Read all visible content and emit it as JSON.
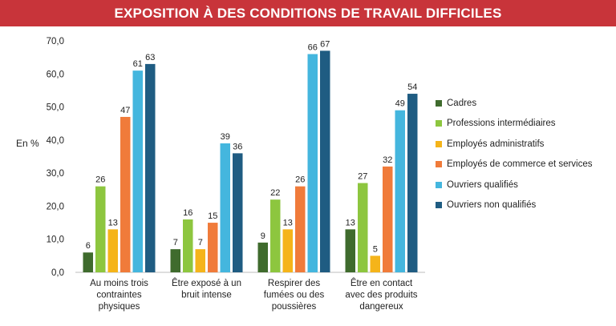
{
  "header": {
    "title": "EXPOSITION À DES CONDITIONS DE TRAVAIL DIFFICILES"
  },
  "colors": {
    "banner": "#c8343a",
    "series": [
      "#3f6b2d",
      "#8dc63f",
      "#f5b41a",
      "#f07b3a",
      "#44b6de",
      "#1f5c82"
    ]
  },
  "chart_data": {
    "type": "bar",
    "title": "",
    "ylabel": "En %",
    "xlabel": "",
    "ylim": [
      0,
      70
    ],
    "yticks": [
      "0,0",
      "10,0",
      "20,0",
      "30,0",
      "40,0",
      "50,0",
      "60,0",
      "70,0"
    ],
    "grid": false,
    "legend_position": "right",
    "categories": [
      [
        "Au moins trois",
        "contraintes",
        "physiques"
      ],
      [
        "Être exposé à un",
        "bruit intense"
      ],
      [
        "Respirer des",
        "fumées ou des",
        "poussières"
      ],
      [
        "Être en contact",
        "avec des produits",
        "dangereux"
      ]
    ],
    "series": [
      {
        "name": "Cadres",
        "values": [
          6,
          7,
          9,
          13
        ]
      },
      {
        "name": "Professions intermédiaires",
        "values": [
          26,
          16,
          22,
          27
        ]
      },
      {
        "name": "Employés administratifs",
        "values": [
          13,
          7,
          13,
          5
        ]
      },
      {
        "name": "Employés de commerce et services",
        "values": [
          47,
          15,
          26,
          32
        ]
      },
      {
        "name": "Ouvriers qualifiés",
        "values": [
          61,
          39,
          66,
          49
        ]
      },
      {
        "name": "Ouvriers non qualifiés",
        "values": [
          63,
          36,
          67,
          54
        ]
      }
    ]
  }
}
